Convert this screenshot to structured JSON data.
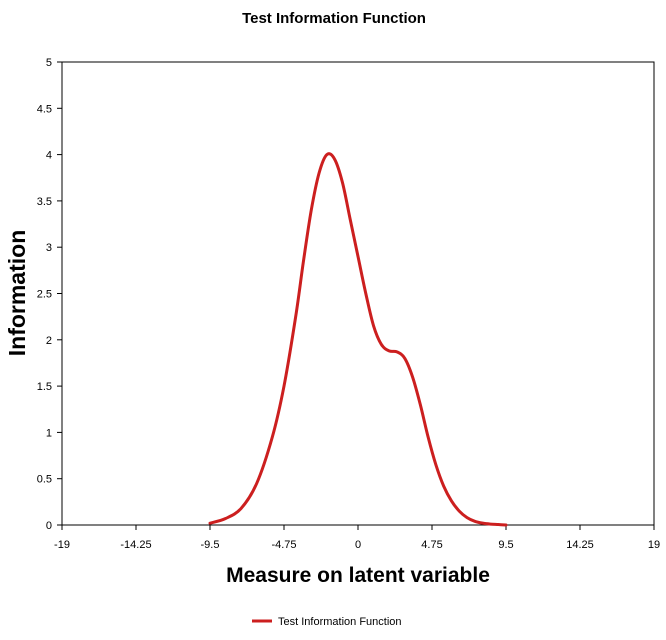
{
  "chart_data": {
    "type": "line",
    "title": "Test Information Function",
    "xlabel": "Measure on latent variable",
    "ylabel": "Information",
    "xlim": [
      -19,
      19
    ],
    "ylim": [
      0,
      5
    ],
    "x_ticks": [
      -19,
      -14.25,
      -9.5,
      -4.75,
      0,
      4.75,
      9.5,
      14.25,
      19
    ],
    "x_tick_labels": [
      "-19",
      "-14.25",
      "-9.5",
      "-4.75",
      "0",
      "4.75",
      "9.5",
      "14.25",
      "19"
    ],
    "y_ticks": [
      0,
      0.5,
      1,
      1.5,
      2,
      2.5,
      3,
      3.5,
      4,
      4.5,
      5
    ],
    "y_tick_labels": [
      "0",
      "0.5",
      "1",
      "1.5",
      "2",
      "2.5",
      "3",
      "3.5",
      "4",
      "4.5",
      "5"
    ],
    "grid": false,
    "legend_position": "bottom-center",
    "series": [
      {
        "name": "Test Information Function",
        "color": "#cc1f1f",
        "x": [
          -9.5,
          -8.5,
          -7.5,
          -6.5,
          -5.5,
          -4.75,
          -4.0,
          -3.5,
          -3.0,
          -2.5,
          -2.0,
          -1.5,
          -1.0,
          -0.5,
          0.0,
          0.5,
          1.0,
          1.5,
          2.0,
          2.5,
          3.0,
          3.5,
          4.0,
          4.5,
          5.0,
          5.5,
          6.0,
          6.5,
          7.0,
          7.5,
          8.0,
          8.5,
          9.0,
          9.5
        ],
        "y": [
          0.02,
          0.07,
          0.18,
          0.45,
          0.95,
          1.5,
          2.25,
          2.85,
          3.4,
          3.8,
          4.0,
          3.95,
          3.7,
          3.3,
          2.9,
          2.5,
          2.15,
          1.95,
          1.88,
          1.87,
          1.8,
          1.6,
          1.3,
          0.95,
          0.65,
          0.42,
          0.26,
          0.15,
          0.08,
          0.04,
          0.02,
          0.01,
          0.005,
          0.0
        ]
      }
    ]
  }
}
